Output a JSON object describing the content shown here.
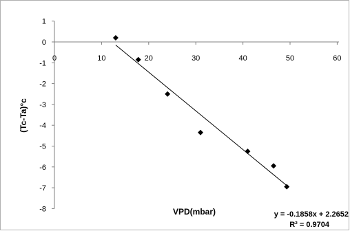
{
  "chart_data": {
    "type": "scatter",
    "title": "",
    "xlabel": "VPD(mbar)",
    "ylabel": "(Tc-Ta)°c",
    "xlim": [
      0,
      60
    ],
    "ylim": [
      -8,
      1
    ],
    "x_ticks": [
      0,
      10,
      20,
      30,
      40,
      50,
      60
    ],
    "y_ticks": [
      1,
      0,
      -1,
      -2,
      -3,
      -4,
      -5,
      -6,
      -7,
      -8
    ],
    "grid": false,
    "series": [
      {
        "marker": "diamond",
        "color": "#000000",
        "points": [
          {
            "x": 13.0,
            "y": 0.2
          },
          {
            "x": 17.8,
            "y": -0.85
          },
          {
            "x": 24.0,
            "y": -2.5
          },
          {
            "x": 31.0,
            "y": -4.35
          },
          {
            "x": 41.0,
            "y": -5.25
          },
          {
            "x": 46.5,
            "y": -5.95
          },
          {
            "x": 49.3,
            "y": -6.95
          }
        ]
      }
    ],
    "trendline": {
      "type": "linear",
      "slope": -0.1858,
      "intercept": 2.2652,
      "x_range": [
        13.0,
        49.3
      ],
      "color": "#000000"
    },
    "annotations": {
      "equation": "y = -0.1858x + 2.2652",
      "r_squared": "R² = 0.9704"
    }
  }
}
